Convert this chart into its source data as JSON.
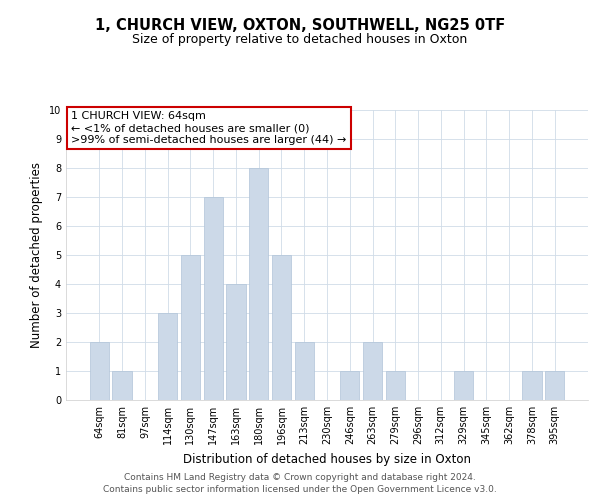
{
  "title": "1, CHURCH VIEW, OXTON, SOUTHWELL, NG25 0TF",
  "subtitle": "Size of property relative to detached houses in Oxton",
  "xlabel": "Distribution of detached houses by size in Oxton",
  "ylabel": "Number of detached properties",
  "categories": [
    "64sqm",
    "81sqm",
    "97sqm",
    "114sqm",
    "130sqm",
    "147sqm",
    "163sqm",
    "180sqm",
    "196sqm",
    "213sqm",
    "230sqm",
    "246sqm",
    "263sqm",
    "279sqm",
    "296sqm",
    "312sqm",
    "329sqm",
    "345sqm",
    "362sqm",
    "378sqm",
    "395sqm"
  ],
  "values": [
    2,
    1,
    0,
    3,
    5,
    7,
    4,
    8,
    5,
    2,
    0,
    1,
    2,
    1,
    0,
    0,
    1,
    0,
    0,
    1,
    1
  ],
  "bar_color": "#ccd9e8",
  "bar_edge_color": "#b0c4d8",
  "ylim": [
    0,
    10
  ],
  "yticks": [
    0,
    1,
    2,
    3,
    4,
    5,
    6,
    7,
    8,
    9,
    10
  ],
  "grid_color": "#d0dce8",
  "bg_color": "#ffffff",
  "annotation_line1": "1 CHURCH VIEW: 64sqm",
  "annotation_line2": "← <1% of detached houses are smaller (0)",
  "annotation_line3": ">99% of semi-detached houses are larger (44) →",
  "annotation_box_color": "#ffffff",
  "annotation_box_edge_color": "#cc0000",
  "footer_line1": "Contains HM Land Registry data © Crown copyright and database right 2024.",
  "footer_line2": "Contains public sector information licensed under the Open Government Licence v3.0.",
  "title_fontsize": 10.5,
  "subtitle_fontsize": 9,
  "axis_label_fontsize": 8.5,
  "tick_fontsize": 7,
  "annotation_fontsize": 8,
  "footer_fontsize": 6.5
}
